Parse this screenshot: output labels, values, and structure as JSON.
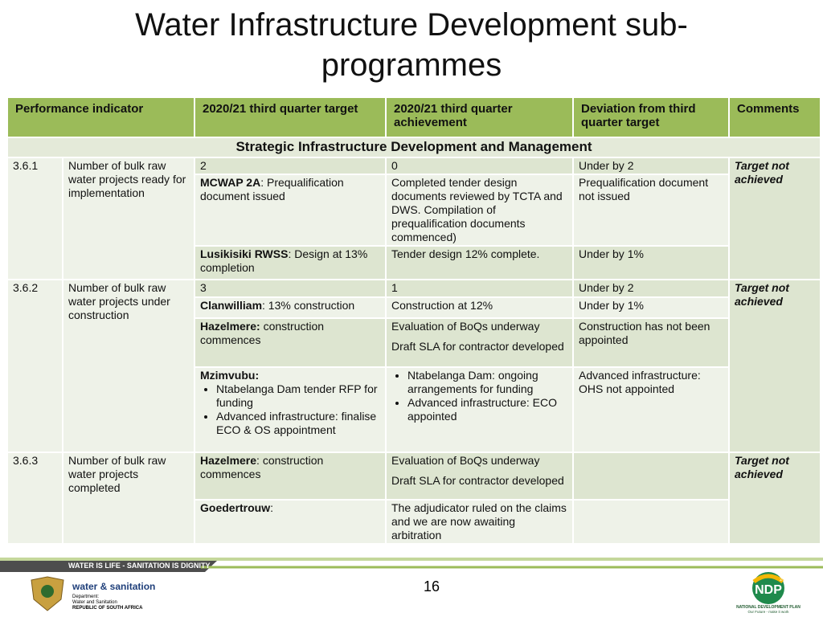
{
  "title": "Water Infrastructure Development sub-programmes",
  "table": {
    "headers": [
      "Performance indicator",
      "2020/21 third quarter target",
      "2020/21 third quarter achievement",
      "Deviation from third quarter target",
      "Comments"
    ],
    "section": "Strategic Infrastructure Development and Management",
    "groups": [
      {
        "code": "3.6.1",
        "indicator": "Number of bulk raw water projects ready for implementation",
        "comment": "Target not achieved",
        "rows": [
          {
            "target": "2",
            "achievement": "0",
            "deviation": "Under by 2"
          },
          {
            "target": {
              "bold": "MCWAP 2A",
              "text": ": Prequalification document issued"
            },
            "achievement": "Completed tender design documents reviewed by TCTA and DWS. Compilation of prequalification documents commenced)",
            "deviation": "Prequalification document not issued"
          },
          {
            "target": {
              "bold": "Lusikisiki RWSS",
              "text": ": Design at 13% completion"
            },
            "achievement": "Tender design 12% complete.",
            "deviation": "Under by 1%"
          }
        ]
      },
      {
        "code": "3.6.2",
        "indicator": "Number of bulk raw water projects under construction",
        "comment": "Target not achieved",
        "rows": [
          {
            "target": "3",
            "achievement": "1",
            "deviation": "Under by 2"
          },
          {
            "target": {
              "bold": "Clanwilliam",
              "text": ": 13% construction"
            },
            "achievement": "Construction at 12%",
            "deviation": "Under by 1%"
          },
          {
            "target": {
              "bold": "Hazelmere:",
              "text": " construction commences"
            },
            "achievement": {
              "paragraphs": [
                "Evaluation of BoQs underway",
                "Draft SLA for contractor developed"
              ]
            },
            "deviation": "Construction has not been appointed"
          },
          {
            "target": {
              "bold": "Mzimvubu:",
              "bullets": [
                "Ntabelanga Dam tender RFP for funding",
                "Advanced infrastructure: finalise ECO & OS appointment"
              ]
            },
            "achievement": {
              "bullets": [
                "Ntabelanga Dam: ongoing arrangements for funding",
                "Advanced infrastructure: ECO appointed"
              ]
            },
            "deviation": "Advanced infrastructure: OHS not  appointed"
          }
        ]
      },
      {
        "code": "3.6.3",
        "indicator": "Number of bulk raw water projects completed",
        "comment": "Target not achieved",
        "rows": [
          {
            "target": {
              "bold": "Hazelmere",
              "text": ": construction commences"
            },
            "achievement": {
              "paragraphs": [
                "Evaluation of BoQs underway",
                "Draft SLA for contractor developed"
              ]
            }
          },
          {
            "target": {
              "bold": "Goedertrouw",
              "text": ":"
            },
            "achievement": "The adjudicator ruled on the claims and we are now awaiting arbitration"
          }
        ]
      }
    ]
  },
  "footer": {
    "banner": "WATER IS LIFE - SANITATION IS DIGNITY",
    "page": "16",
    "dept_logo": {
      "name": "water & sanitation",
      "lines": [
        "Department:",
        "Water and Sanitation",
        "REPUBLIC OF SOUTH AFRICA"
      ]
    },
    "ndp_logo": {
      "mark": "NDP",
      "year": "2030",
      "name": "NATIONAL DEVELOPMENT PLAN",
      "tagline": "Our Future - make it work"
    }
  }
}
